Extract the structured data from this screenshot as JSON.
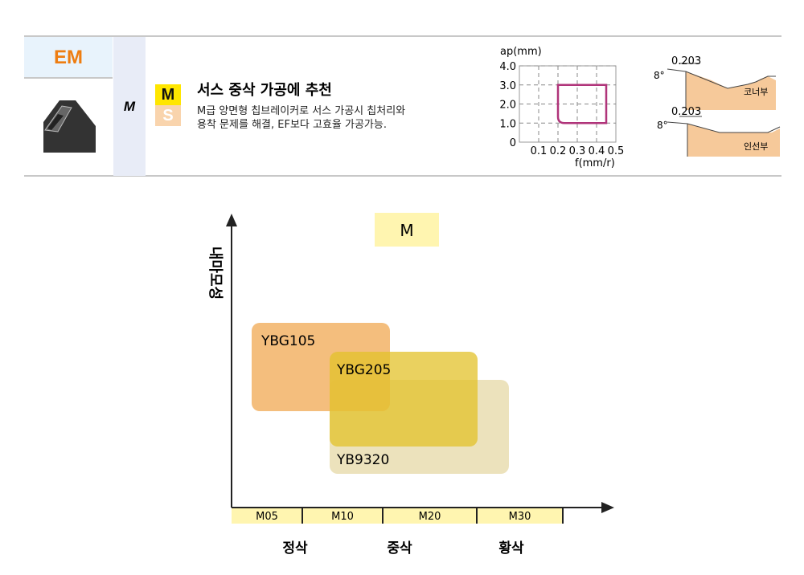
{
  "header": {
    "code": "EM",
    "class": "M",
    "badges": [
      {
        "label": "M",
        "color": "#ffe600",
        "text_color": "#111"
      },
      {
        "label": "S",
        "color": "#f9d4ad",
        "text_color": "#fff"
      }
    ],
    "title": "서스 중삭 가공에 추천",
    "desc_line1": "M급 양면형 칩브레이커로 서스 가공시 칩처리와",
    "desc_line2": "용착 문제를 해결, EF보다 고효율 가공가능."
  },
  "mini_chart": {
    "type": "area",
    "ylabel": "ap(mm)",
    "xlabel": "f(mm/r)",
    "yticks": [
      "4.0",
      "3.0",
      "2.0",
      "1.0",
      "0"
    ],
    "xticks": [
      "0.1",
      "0.2",
      "0.3",
      "0.4",
      "0.5"
    ],
    "region": {
      "f": [
        0.2,
        0.45
      ],
      "ap": [
        1.0,
        3.0
      ]
    },
    "color": "#b0347a"
  },
  "profiles": [
    {
      "width": "0.203",
      "angle": "8°",
      "label": "코너부"
    },
    {
      "width": "0.203",
      "angle": "8°",
      "label": "인선부"
    }
  ],
  "chart_data": {
    "type": "area",
    "title": "M",
    "ylabel": "내마모성",
    "categories": [
      "M05",
      "M10",
      "M20",
      "M30"
    ],
    "groups": [
      "정삭",
      "중삭",
      "황삭"
    ],
    "grades": [
      {
        "name": "YBG105",
        "range": [
          "M05",
          "M10"
        ],
        "color": "#f2b366"
      },
      {
        "name": "YBG205",
        "range": [
          "M10",
          "M20"
        ],
        "color": "#e3c22a"
      },
      {
        "name": "YB9320",
        "range": [
          "M10",
          "M30"
        ],
        "color": "#e5d8a6"
      }
    ]
  }
}
